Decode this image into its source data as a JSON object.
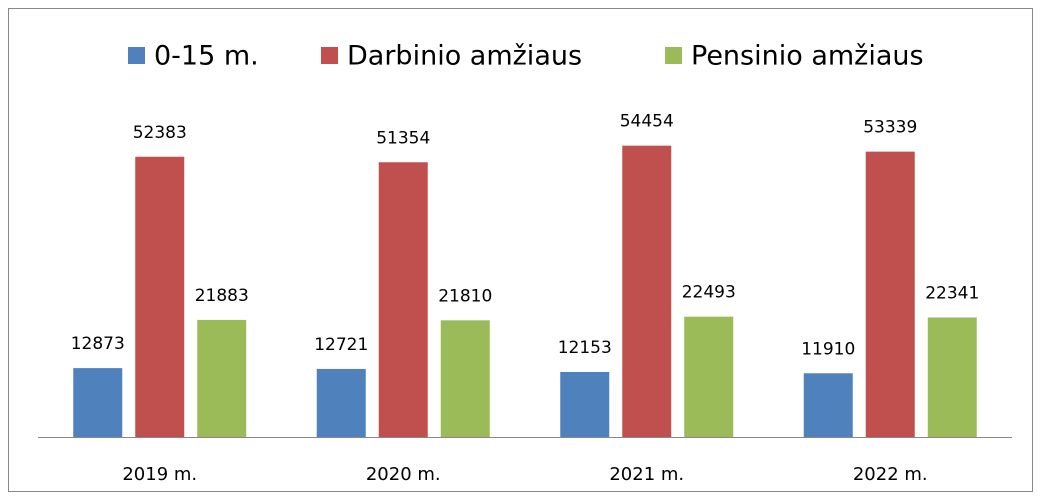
{
  "chart_data": {
    "type": "bar",
    "categories": [
      "2019 m.",
      "2020 m.",
      "2021 m.",
      "2022 m."
    ],
    "series": [
      {
        "name": "0-15 m.",
        "color": "#4f81bd",
        "values": [
          12873,
          12721,
          12153,
          11910
        ]
      },
      {
        "name": "Darbinio amžiaus",
        "color": "#c0504d",
        "values": [
          52383,
          51354,
          54454,
          53339
        ]
      },
      {
        "name": "Pensinio amžiaus",
        "color": "#9bbb59",
        "values": [
          21883,
          21810,
          22493,
          22341
        ]
      }
    ],
    "ylim": [
      0,
      60000
    ],
    "legend": "top"
  }
}
